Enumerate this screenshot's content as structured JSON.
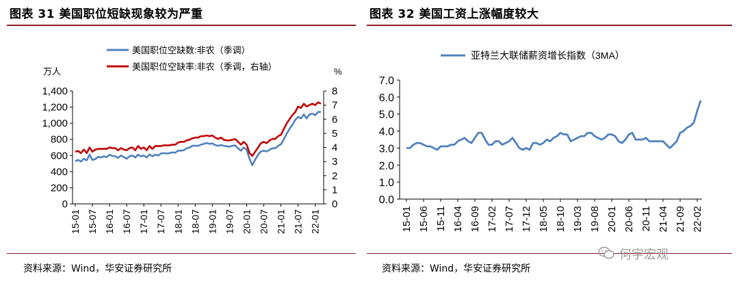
{
  "left": {
    "title": "图表 31  美国职位短缺现象较为严重",
    "source": "资料来源：Wind，华安证券研究所",
    "chart_data": {
      "type": "line",
      "y_left_unit": "万人",
      "y_right_unit": "%",
      "ylim_left": [
        0,
        1400
      ],
      "ylim_right": [
        0,
        8
      ],
      "yticks_left": [
        "0",
        "200",
        "400",
        "600",
        "800",
        "1,000",
        "1,200",
        "1,400"
      ],
      "yticks_right": [
        "0",
        "1",
        "2",
        "3",
        "4",
        "5",
        "6",
        "7",
        "8"
      ],
      "xtick_labels": [
        "15-01",
        "15-07",
        "16-01",
        "16-07",
        "17-01",
        "17-07",
        "18-01",
        "18-07",
        "19-01",
        "19-07",
        "20-01",
        "20-07",
        "21-01",
        "21-07",
        "22-01"
      ],
      "series": [
        {
          "name": "美国职位空缺数:非农（季调）",
          "axis": "left",
          "color": "#4f81bd",
          "values": [
            530,
            545,
            525,
            560,
            540,
            610,
            545,
            555,
            585,
            575,
            590,
            580,
            610,
            595,
            590,
            570,
            600,
            580,
            560,
            590,
            600,
            575,
            610,
            590,
            600,
            575,
            615,
            590,
            610,
            600,
            625,
            630,
            625,
            630,
            640,
            635,
            660,
            660,
            665,
            690,
            700,
            720,
            720,
            720,
            735,
            745,
            755,
            745,
            750,
            730,
            720,
            730,
            720,
            715,
            710,
            720,
            725,
            690,
            660,
            700,
            670,
            560,
            480,
            550,
            610,
            650,
            660,
            650,
            670,
            690,
            690,
            720,
            740,
            800,
            870,
            930,
            980,
            1040,
            1080,
            1060,
            1110,
            1060,
            1110,
            1120,
            1100,
            1140,
            1140
          ]
        },
        {
          "name": "美国职位空缺率:非农（季调，右轴）",
          "axis": "right",
          "color": "#c00000",
          "values": [
            3.7,
            3.75,
            3.6,
            3.85,
            3.6,
            4.0,
            3.7,
            3.85,
            3.9,
            3.9,
            3.9,
            3.9,
            4.0,
            3.95,
            3.95,
            3.8,
            3.95,
            3.85,
            3.8,
            3.95,
            4.0,
            3.8,
            4.1,
            3.9,
            4.0,
            3.8,
            4.1,
            3.9,
            4.1,
            4.1,
            4.1,
            4.15,
            4.15,
            4.15,
            4.2,
            4.2,
            4.35,
            4.4,
            4.4,
            4.5,
            4.55,
            4.65,
            4.7,
            4.7,
            4.8,
            4.8,
            4.85,
            4.8,
            4.85,
            4.7,
            4.6,
            4.7,
            4.55,
            4.5,
            4.5,
            4.55,
            4.6,
            4.4,
            4.2,
            4.4,
            4.2,
            3.6,
            3.4,
            3.7,
            4.0,
            4.3,
            4.4,
            4.3,
            4.5,
            4.6,
            4.6,
            4.8,
            4.9,
            5.3,
            5.7,
            6.0,
            6.3,
            6.5,
            6.9,
            6.8,
            7.1,
            6.9,
            7.0,
            7.1,
            7.0,
            7.2,
            7.1
          ]
        }
      ]
    }
  },
  "right": {
    "title": "图表 32  美国工资上涨幅度较大",
    "source": "资料来源：Wind，华安证券研究所",
    "chart_data": {
      "type": "line",
      "ylim": [
        0,
        7
      ],
      "yticks": [
        "0.0",
        "1.0",
        "2.0",
        "3.0",
        "4.0",
        "5.0",
        "6.0",
        "7.0"
      ],
      "xtick_labels": [
        "15-01",
        "15-06",
        "15-11",
        "16-04",
        "16-09",
        "17-02",
        "17-07",
        "17-12",
        "18-05",
        "18-10",
        "19-03",
        "19-08",
        "20-01",
        "20-06",
        "20-11",
        "21-04",
        "21-09",
        "22-02"
      ],
      "series": [
        {
          "name": "亚特兰大联储薪资增长指数（3MA）",
          "color": "#4f81bd",
          "values": [
            3.0,
            3.0,
            3.2,
            3.3,
            3.3,
            3.2,
            3.1,
            3.1,
            3.0,
            2.9,
            3.1,
            3.1,
            3.1,
            3.2,
            3.2,
            3.4,
            3.5,
            3.6,
            3.4,
            3.3,
            3.6,
            3.9,
            3.9,
            3.5,
            3.2,
            3.2,
            3.4,
            3.4,
            3.2,
            3.3,
            3.4,
            3.6,
            3.3,
            3.0,
            2.9,
            3.0,
            2.9,
            3.3,
            3.3,
            3.2,
            3.3,
            3.5,
            3.4,
            3.6,
            3.7,
            3.9,
            3.8,
            3.8,
            3.4,
            3.5,
            3.6,
            3.7,
            3.7,
            3.9,
            3.9,
            3.7,
            3.6,
            3.5,
            3.6,
            3.8,
            3.8,
            3.7,
            3.4,
            3.3,
            3.5,
            3.8,
            3.9,
            3.5,
            3.5,
            3.5,
            3.6,
            3.4,
            3.4,
            3.4,
            3.4,
            3.4,
            3.2,
            3.0,
            3.2,
            3.4,
            3.9,
            4.0,
            4.2,
            4.3,
            4.5,
            5.2,
            5.8
          ]
        }
      ]
    }
  },
  "watermark": "何宇宏观"
}
